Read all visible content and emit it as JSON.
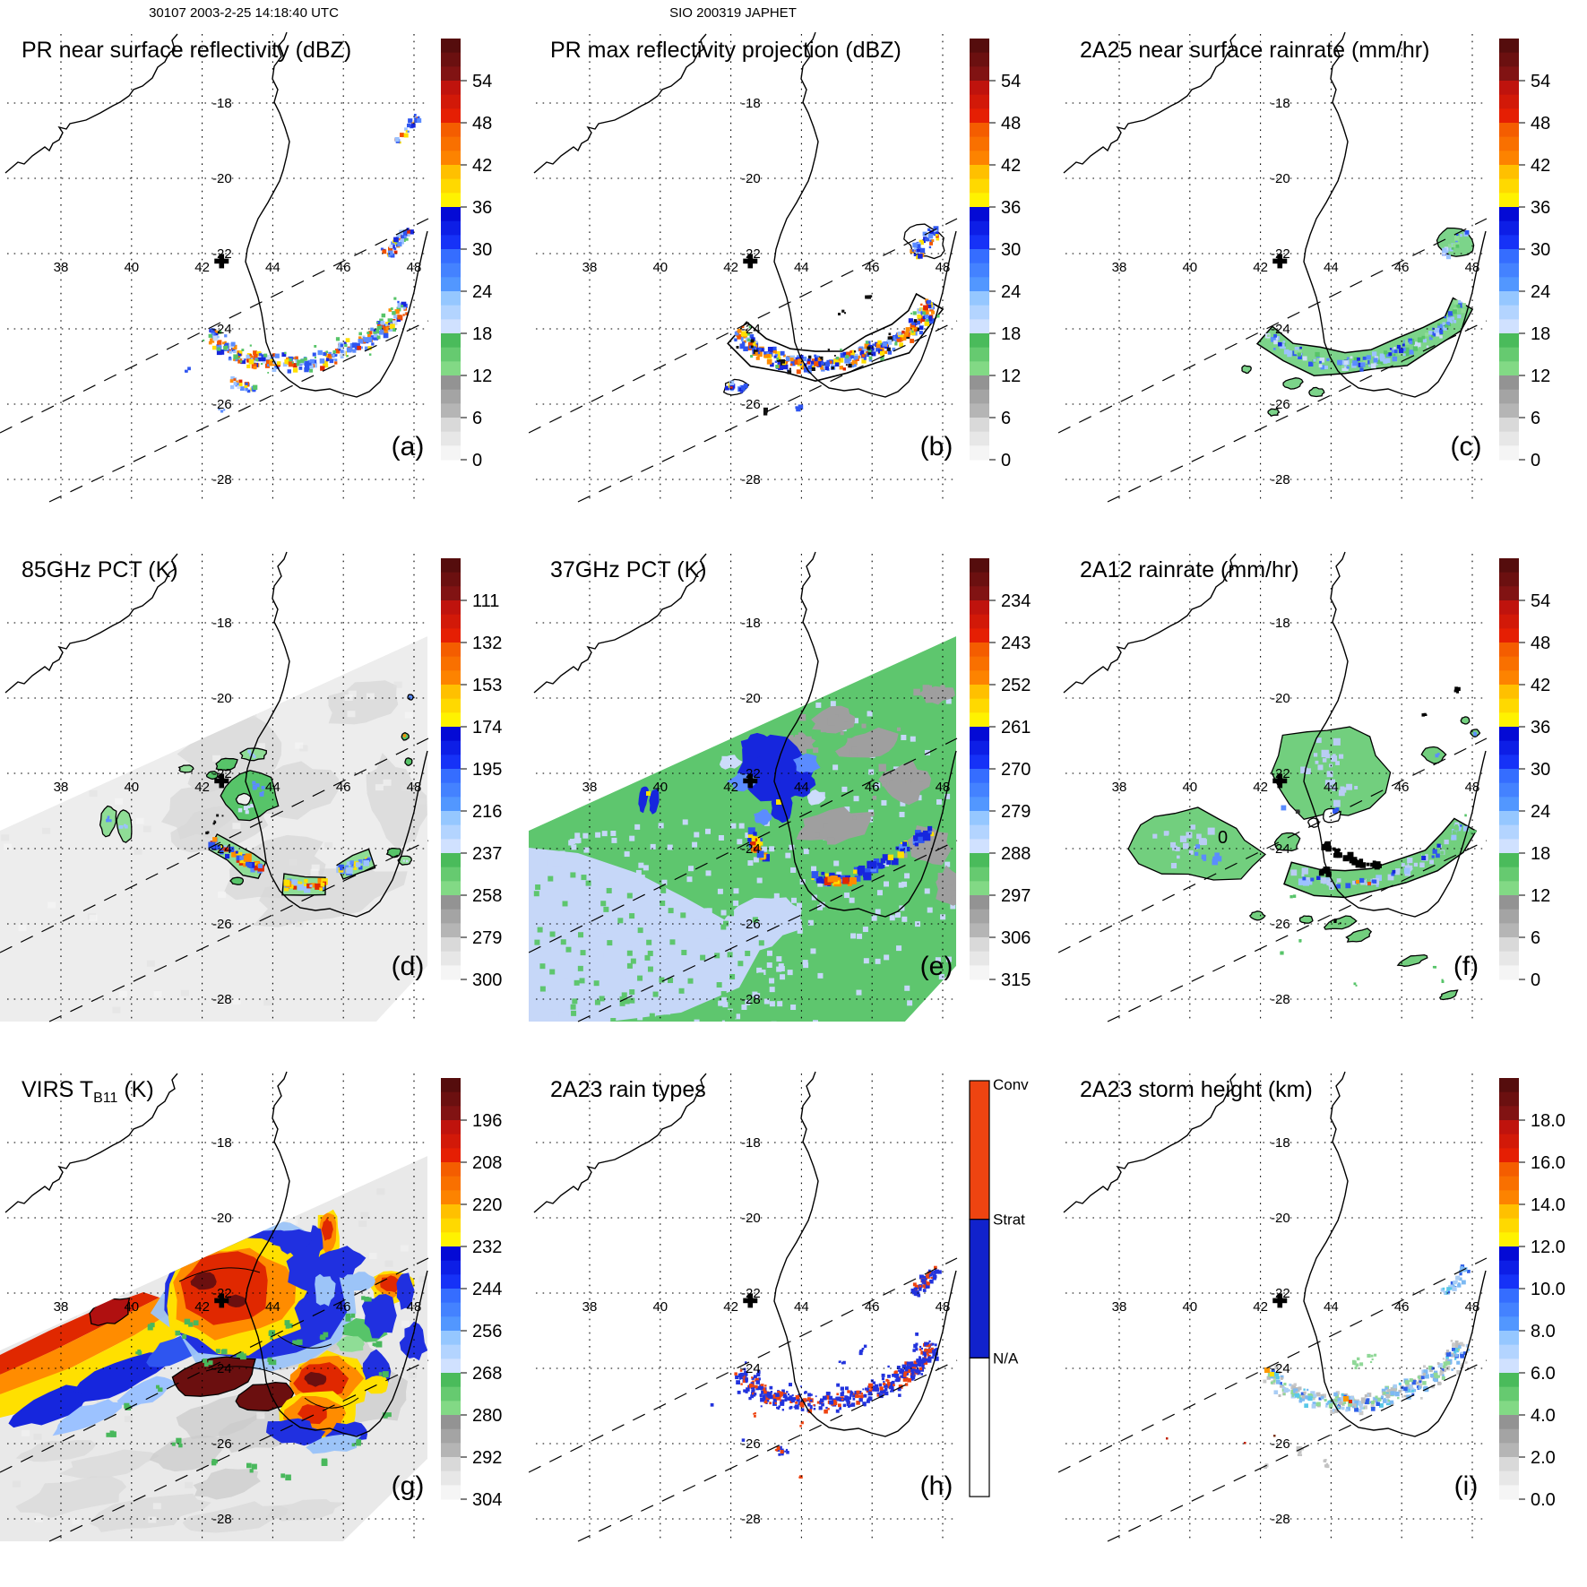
{
  "header": {
    "left_title": "30107 2003-2-25 14:18:40 UTC",
    "center_title": "SIO 200319 JAPHET"
  },
  "chart_data": {
    "type": "heatmap",
    "figure_kind": "TRMM satellite overpass multi-panel maps",
    "storm": "SIO 200319 JAPHET",
    "overpass": "30107 2003-2-25 14:18:40 UTC",
    "geo": {
      "lon_labels": [
        "38",
        "40",
        "42",
        "44",
        "46",
        "48"
      ],
      "lat_labels": [
        "-18",
        "-20",
        "-22",
        "-24",
        "-26",
        "-28"
      ],
      "lon_ticks": [
        38,
        40,
        42,
        44,
        46,
        48
      ],
      "lat_ticks": [
        -18,
        -20,
        -22,
        -24,
        -26,
        -28
      ],
      "center_marker": {
        "lon": 42.55,
        "lat": -22.2
      },
      "features": [
        "Mozambique coastline",
        "Madagascar coastline",
        "dotted lat-lon graticule",
        "dashed swath-edge lines",
        "storm center cross marker",
        "curved rainband 42-48E / 24-25S"
      ]
    },
    "panels": [
      {
        "id": "a",
        "letter": "(a)",
        "title": "PR near surface reflectivity (dBZ)",
        "colorbar": {
          "kind": "spectral",
          "tick_labels": [
            "54",
            "48",
            "42",
            "36",
            "30",
            "24",
            "18",
            "12",
            "6",
            "0"
          ]
        },
        "content": "speckled rainband arc of 18-50 dBZ echoes across southern Madagascar plus small cluster near 47.5E 22S"
      },
      {
        "id": "b",
        "letter": "(b)",
        "title": "PR max reflectivity projection (dBZ)",
        "colorbar": {
          "kind": "spectral",
          "tick_labels": [
            "54",
            "48",
            "42",
            "36",
            "30",
            "24",
            "18",
            "12",
            "6",
            "0"
          ]
        },
        "content": "denser black-contoured rainband with embedded 36-48 dBZ cores along same arc"
      },
      {
        "id": "c",
        "letter": "(c)",
        "title": "2A25 near surface rainrate (mm/hr)",
        "colorbar": {
          "kind": "spectral",
          "tick_labels": [
            "54",
            "48",
            "42",
            "36",
            "30",
            "24",
            "18",
            "12",
            "6",
            "0"
          ]
        },
        "content": "green rainband (2-12 mm/hr) with embedded blue 18-30 mm/hr cells along the arc"
      },
      {
        "id": "d",
        "letter": "(d)",
        "title": "85GHz PCT (K)",
        "colorbar": {
          "kind": "spectral",
          "tick_labels": [
            "111",
            "132",
            "153",
            "174",
            "195",
            "216",
            "237",
            "258",
            "279",
            "300"
          ]
        },
        "content": "light-gray TMI swath, green 237K depressions around storm, deep 111-195K cores in contoured band cells"
      },
      {
        "id": "e",
        "letter": "(e)",
        "title": "37GHz PCT (K)",
        "colorbar": {
          "kind": "spectral",
          "tick_labels": [
            "234",
            "243",
            "252",
            "261",
            "270",
            "279",
            "288",
            "297",
            "306",
            "315"
          ]
        },
        "content": "full swath: green ~288K ocean, pale-blue ~279K SW sector, gray land, dark-blue 270K storm core near marker, red-orange 234-252K convective arc"
      },
      {
        "id": "f",
        "letter": "(f)",
        "title": "2A12 rainrate (mm/hr)",
        "colorbar": {
          "kind": "spectral",
          "tick_labels": [
            "54",
            "48",
            "42",
            "36",
            "30",
            "24",
            "18",
            "12",
            "6",
            "0"
          ]
        },
        "annotation": "0",
        "content": "black-contoured green 2A12 rain areas over storm and rainband with light-blue and black heavy-rain pixels"
      },
      {
        "id": "g",
        "letter": "(g)",
        "title_parts": [
          {
            "t": "VIRS T"
          },
          {
            "t": "B11",
            "sub": true
          },
          {
            "t": " (K)"
          }
        ],
        "title_text": "VIRS TB11 (K)",
        "colorbar": {
          "kind": "spectral",
          "tick_labels": [
            "196",
            "208",
            "220",
            "232",
            "244",
            "256",
            "268",
            "280",
            "292",
            "304"
          ]
        },
        "content": "IR brightness temperature: large red-orange <220K cloud shield around center, dark-maroon <196K blobs along rainband, blue 244-256K fringes, gray warm background"
      },
      {
        "id": "h",
        "letter": "(h)",
        "title": "2A23 rain types",
        "colorbar": {
          "kind": "categorical",
          "categories": [
            "Conv",
            "Strat",
            "N/A"
          ],
          "colors": [
            "#ee4411",
            "#1122cc",
            "#ffffff"
          ]
        },
        "content": "convective (red) cores embedded in stratiform (blue) rainband arc"
      },
      {
        "id": "i",
        "letter": "(i)",
        "title": "2A23 storm height (km)",
        "colorbar": {
          "kind": "spectral",
          "tick_labels": [
            "18.0",
            "16.0",
            "14.0",
            "12.0",
            "10.0",
            "8.0",
            "6.0",
            "4.0",
            "2.0",
            "0.0"
          ]
        },
        "content": "storm heights mostly 4-10 km (gray/green/blue) along rainband with isolated 12-14 km orange tops"
      }
    ],
    "colorbar_band_colors": [
      [
        "#4a0c0c",
        "#8c1414"
      ],
      [
        "#b51010",
        "#ee2200"
      ],
      [
        "#f25400",
        "#ff8c00"
      ],
      [
        "#ffb300",
        "#ffff00"
      ],
      [
        "#0000cd",
        "#1a3cff"
      ],
      [
        "#2e62ff",
        "#59a2ff"
      ],
      [
        "#86c0ff",
        "#dfe8ff"
      ],
      [
        "#3cb450",
        "#90e090"
      ],
      [
        "#8a8a8a",
        "#bdbdbd"
      ],
      [
        "#d2d2d2",
        "#fcfcfc"
      ]
    ]
  }
}
